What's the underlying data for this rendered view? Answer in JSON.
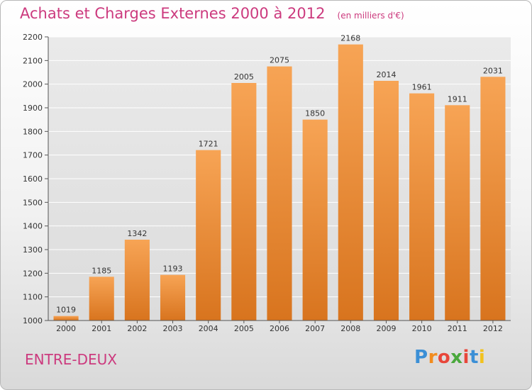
{
  "chart_data": {
    "type": "bar",
    "title": "Achats et Charges Externes 2000 à 2012",
    "unit": "(en milliers d'€)",
    "categories": [
      "2000",
      "2001",
      "2002",
      "2003",
      "2004",
      "2005",
      "2006",
      "2007",
      "2008",
      "2009",
      "2010",
      "2011",
      "2012"
    ],
    "values": [
      1019,
      1185,
      1342,
      1193,
      1721,
      2005,
      2075,
      1850,
      2168,
      2014,
      1961,
      1911,
      2031
    ],
    "ylim": [
      1000,
      2200
    ],
    "yticks": [
      1000,
      1100,
      1200,
      1300,
      1400,
      1500,
      1600,
      1700,
      1800,
      1900,
      2000,
      2100,
      2200
    ],
    "grid": true,
    "bar_color": "#f0923c",
    "xlabel": "",
    "ylabel": ""
  },
  "commune": "ENTRE-DEUX",
  "brand": {
    "letters": [
      "P",
      "r",
      "o",
      "x",
      "i",
      "t",
      "i"
    ],
    "colors": [
      "#3b8fd6",
      "#f28c1e",
      "#e8463a",
      "#4aa83c",
      "#e8463a",
      "#3b8fd6",
      "#f2c21e"
    ]
  }
}
